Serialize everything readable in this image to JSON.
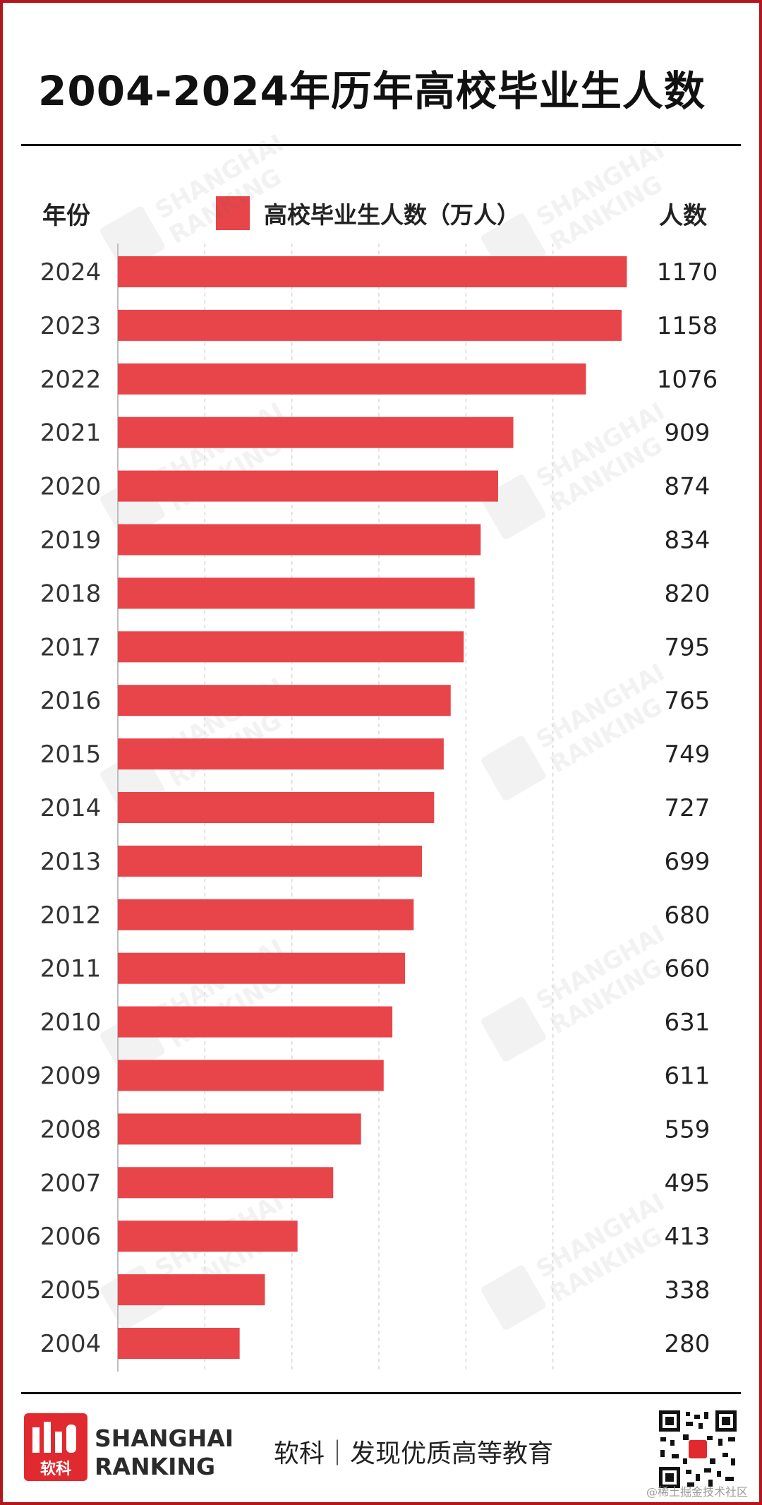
{
  "title": "2004-2024年历年高校毕业生人数",
  "header": {
    "year_label": "年份",
    "count_label": "人数"
  },
  "colors": {
    "bar": "#e8454a",
    "frame": "#b3161b",
    "grid": "#d7d7d7"
  },
  "footer": {
    "brand_line1": "SHANGHAI",
    "brand_line2": "RANKING",
    "slogan": "软科｜发现优质高等教育",
    "logo_text": "软科",
    "credit": "@稀土掘金技术社区"
  },
  "watermark": {
    "line1": "SHANGHAI",
    "line2": "RANKING"
  },
  "chart_data": {
    "type": "bar",
    "orientation": "horizontal",
    "title": "2004-2024年历年高校毕业生人数",
    "categories": [
      "2024",
      "2023",
      "2022",
      "2021",
      "2020",
      "2019",
      "2018",
      "2017",
      "2016",
      "2015",
      "2014",
      "2013",
      "2012",
      "2011",
      "2010",
      "2009",
      "2008",
      "2007",
      "2006",
      "2005",
      "2004"
    ],
    "series": [
      {
        "name": "高校毕业生人数（万人）",
        "values": [
          1170,
          1158,
          1076,
          909,
          874,
          834,
          820,
          795,
          765,
          749,
          727,
          699,
          680,
          660,
          631,
          611,
          559,
          495,
          413,
          338,
          280
        ]
      }
    ],
    "xlim": [
      0,
      1200
    ],
    "grid": true,
    "legend_position": "top"
  }
}
